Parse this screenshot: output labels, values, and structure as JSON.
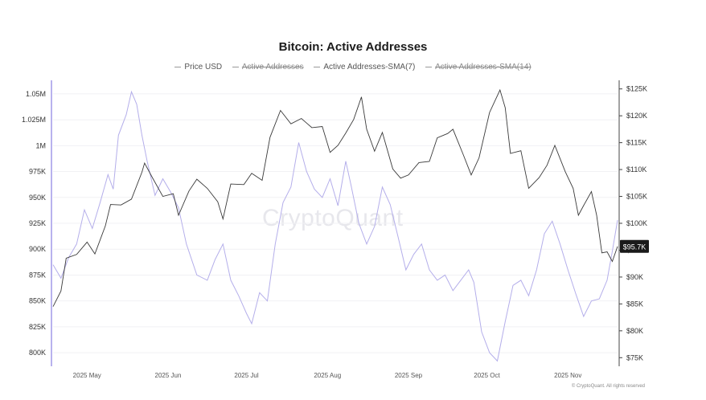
{
  "chart_data": {
    "type": "line",
    "title": "Bitcoin: Active Addresses",
    "legend": [
      {
        "name": "Price USD",
        "visible": true
      },
      {
        "name": "Active Addresses",
        "visible": false
      },
      {
        "name": "Active Addresses-SMA(7)",
        "visible": true
      },
      {
        "name": "Active Addresses-SMA(14)",
        "visible": false
      }
    ],
    "x_ticks": [
      "2025 May",
      "2025 Jun",
      "2025 Jul",
      "2025 Aug",
      "2025 Sep",
      "2025 Oct",
      "2025 Nov"
    ],
    "x_range": [
      "2025-04-18",
      "2025-11-20"
    ],
    "y_left": {
      "ticks": [
        "800K",
        "825K",
        "850K",
        "875K",
        "900K",
        "925K",
        "950K",
        "975K",
        "1M",
        "1.025M",
        "1.05M"
      ],
      "ylim": [
        790000,
        1060000
      ]
    },
    "y_right": {
      "ticks": [
        "$75K",
        "$80K",
        "$85K",
        "$90K",
        "$95K",
        "$100K",
        "$105K",
        "$110K",
        "$115K",
        "$120K",
        "$125K"
      ],
      "ylim": [
        74000,
        126000
      ]
    },
    "current_price_label": "$95.7K",
    "colors": {
      "price": "#3a3a3a",
      "sma7": "#b4aeea",
      "left_axis": "#b8b2ee",
      "right_axis": "#444444",
      "price_tag": "#1a1a1a"
    },
    "series": [
      {
        "name": "Price USD",
        "axis": "right",
        "points": [
          [
            "2025-04-18",
            84500
          ],
          [
            "2025-04-21",
            87400
          ],
          [
            "2025-04-23",
            93500
          ],
          [
            "2025-04-27",
            94200
          ],
          [
            "2025-05-01",
            96500
          ],
          [
            "2025-05-04",
            94300
          ],
          [
            "2025-05-08",
            99500
          ],
          [
            "2025-05-10",
            103500
          ],
          [
            "2025-05-14",
            103400
          ],
          [
            "2025-05-18",
            104500
          ],
          [
            "2025-05-22",
            109500
          ],
          [
            "2025-05-23",
            111200
          ],
          [
            "2025-05-26",
            108500
          ],
          [
            "2025-05-30",
            105000
          ],
          [
            "2025-06-03",
            105500
          ],
          [
            "2025-06-05",
            101500
          ],
          [
            "2025-06-09",
            106000
          ],
          [
            "2025-06-12",
            108200
          ],
          [
            "2025-06-16",
            106500
          ],
          [
            "2025-06-20",
            104000
          ],
          [
            "2025-06-22",
            100800
          ],
          [
            "2025-06-25",
            107300
          ],
          [
            "2025-06-30",
            107200
          ],
          [
            "2025-07-03",
            109300
          ],
          [
            "2025-07-07",
            108000
          ],
          [
            "2025-07-10",
            116000
          ],
          [
            "2025-07-14",
            121000
          ],
          [
            "2025-07-18",
            118500
          ],
          [
            "2025-07-22",
            119500
          ],
          [
            "2025-07-26",
            117800
          ],
          [
            "2025-07-30",
            118000
          ],
          [
            "2025-08-02",
            113200
          ],
          [
            "2025-08-05",
            114500
          ],
          [
            "2025-08-08",
            116800
          ],
          [
            "2025-08-11",
            119300
          ],
          [
            "2025-08-14",
            123500
          ],
          [
            "2025-08-16",
            117500
          ],
          [
            "2025-08-19",
            113400
          ],
          [
            "2025-08-22",
            116900
          ],
          [
            "2025-08-26",
            110100
          ],
          [
            "2025-08-29",
            108400
          ],
          [
            "2025-09-01",
            109000
          ],
          [
            "2025-09-05",
            111300
          ],
          [
            "2025-09-09",
            111500
          ],
          [
            "2025-09-12",
            115900
          ],
          [
            "2025-09-16",
            116700
          ],
          [
            "2025-09-18",
            117500
          ],
          [
            "2025-09-22",
            112700
          ],
          [
            "2025-09-25",
            109000
          ],
          [
            "2025-09-28",
            112200
          ],
          [
            "2025-10-02",
            120600
          ],
          [
            "2025-10-06",
            124800
          ],
          [
            "2025-10-08",
            121500
          ],
          [
            "2025-10-10",
            113000
          ],
          [
            "2025-10-14",
            113500
          ],
          [
            "2025-10-17",
            106500
          ],
          [
            "2025-10-21",
            108500
          ],
          [
            "2025-10-24",
            110800
          ],
          [
            "2025-10-27",
            114500
          ],
          [
            "2025-10-31",
            109600
          ],
          [
            "2025-11-03",
            106500
          ],
          [
            "2025-11-05",
            101500
          ],
          [
            "2025-11-07",
            103300
          ],
          [
            "2025-11-10",
            105900
          ],
          [
            "2025-11-12",
            101500
          ],
          [
            "2025-11-14",
            94500
          ],
          [
            "2025-11-16",
            94700
          ],
          [
            "2025-11-18",
            92900
          ],
          [
            "2025-11-20",
            95700
          ]
        ]
      },
      {
        "name": "Active Addresses-SMA(7)",
        "axis": "left",
        "points": [
          [
            "2025-04-18",
            885000
          ],
          [
            "2025-04-21",
            872000
          ],
          [
            "2025-04-24",
            892000
          ],
          [
            "2025-04-27",
            905000
          ],
          [
            "2025-04-30",
            938000
          ],
          [
            "2025-05-03",
            920000
          ],
          [
            "2025-05-06",
            945000
          ],
          [
            "2025-05-09",
            972000
          ],
          [
            "2025-05-11",
            958000
          ],
          [
            "2025-05-13",
            1010000
          ],
          [
            "2025-05-16",
            1030000
          ],
          [
            "2025-05-18",
            1052000
          ],
          [
            "2025-05-20",
            1040000
          ],
          [
            "2025-05-22",
            1010000
          ],
          [
            "2025-05-24",
            985000
          ],
          [
            "2025-05-27",
            952000
          ],
          [
            "2025-05-30",
            968000
          ],
          [
            "2025-06-02",
            955000
          ],
          [
            "2025-06-05",
            940000
          ],
          [
            "2025-06-08",
            905000
          ],
          [
            "2025-06-12",
            875000
          ],
          [
            "2025-06-16",
            870000
          ],
          [
            "2025-06-19",
            890000
          ],
          [
            "2025-06-22",
            905000
          ],
          [
            "2025-06-25",
            870000
          ],
          [
            "2025-06-28",
            855000
          ],
          [
            "2025-07-01",
            838000
          ],
          [
            "2025-07-03",
            828000
          ],
          [
            "2025-07-06",
            858000
          ],
          [
            "2025-07-09",
            850000
          ],
          [
            "2025-07-12",
            905000
          ],
          [
            "2025-07-15",
            945000
          ],
          [
            "2025-07-18",
            960000
          ],
          [
            "2025-07-21",
            1003000
          ],
          [
            "2025-07-24",
            975000
          ],
          [
            "2025-07-27",
            958000
          ],
          [
            "2025-07-30",
            950000
          ],
          [
            "2025-08-02",
            968000
          ],
          [
            "2025-08-05",
            942000
          ],
          [
            "2025-08-08",
            985000
          ],
          [
            "2025-08-10",
            962000
          ],
          [
            "2025-08-13",
            925000
          ],
          [
            "2025-08-16",
            905000
          ],
          [
            "2025-08-19",
            922000
          ],
          [
            "2025-08-22",
            960000
          ],
          [
            "2025-08-25",
            943000
          ],
          [
            "2025-08-28",
            912000
          ],
          [
            "2025-08-31",
            880000
          ],
          [
            "2025-09-03",
            895000
          ],
          [
            "2025-09-06",
            905000
          ],
          [
            "2025-09-09",
            880000
          ],
          [
            "2025-09-12",
            870000
          ],
          [
            "2025-09-15",
            875000
          ],
          [
            "2025-09-18",
            860000
          ],
          [
            "2025-09-21",
            870000
          ],
          [
            "2025-09-24",
            880000
          ],
          [
            "2025-09-26",
            868000
          ],
          [
            "2025-09-29",
            820000
          ],
          [
            "2025-10-02",
            800000
          ],
          [
            "2025-10-05",
            792000
          ],
          [
            "2025-10-08",
            830000
          ],
          [
            "2025-10-11",
            865000
          ],
          [
            "2025-10-14",
            870000
          ],
          [
            "2025-10-17",
            855000
          ],
          [
            "2025-10-20",
            880000
          ],
          [
            "2025-10-23",
            915000
          ],
          [
            "2025-10-26",
            927000
          ],
          [
            "2025-10-29",
            905000
          ],
          [
            "2025-11-01",
            880000
          ],
          [
            "2025-11-04",
            857000
          ],
          [
            "2025-11-07",
            835000
          ],
          [
            "2025-11-10",
            850000
          ],
          [
            "2025-11-13",
            852000
          ],
          [
            "2025-11-16",
            870000
          ],
          [
            "2025-11-18",
            898000
          ],
          [
            "2025-11-20",
            928000
          ]
        ]
      }
    ]
  },
  "watermark": "CryptoQuant",
  "copyright": "© CryptoQuant. All rights reserved"
}
